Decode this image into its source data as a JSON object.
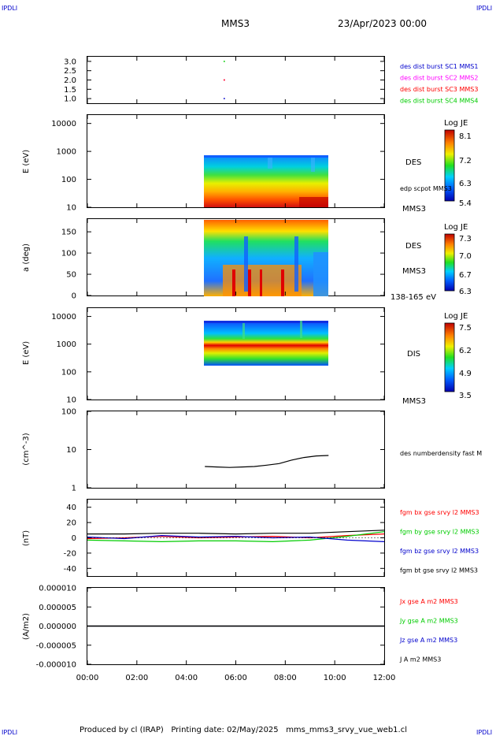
{
  "header": {
    "corner_tl": "IPDLI",
    "corner_tr": "IPDLI",
    "corner_bl": "IPDLI",
    "corner_br": "IPDLI",
    "spacecraft": "MMS3",
    "date": "23/Apr/2023 00:00"
  },
  "footer": {
    "text": "Produced by cl (IRAP)   Printing date: 02/May/2025   mms_mms3_srvy_vue_web1.cl"
  },
  "colors": {
    "blue": "#0000cc",
    "magenta": "#ff00ff",
    "red": "#ff0000",
    "green": "#00cc00",
    "black": "#000000"
  },
  "chart_data": [
    {
      "type": "scatter",
      "panel": "burst-indicator",
      "xlim": [
        "00:00",
        "12:00"
      ],
      "ylim": [
        0.75,
        3.25
      ],
      "yticks": [
        "1.0",
        "1.5",
        "2.0",
        "2.5",
        "3.0"
      ],
      "series": [
        {
          "name": "des dist burst SC1 MMS1",
          "color": "#0000cc",
          "x": [
            "05:32"
          ],
          "y": [
            1.0
          ]
        },
        {
          "name": "des dist burst SC2 MMS2",
          "color": "#ff00ff",
          "x": [
            "05:32"
          ],
          "y": [
            2.0
          ]
        },
        {
          "name": "des dist burst SC3 MMS3",
          "color": "#ff0000",
          "x": [
            "05:32"
          ],
          "y": [
            2.0
          ]
        },
        {
          "name": "des dist burst SC4 MMS4",
          "color": "#00cc00",
          "x": [
            "05:32"
          ],
          "y": [
            3.0
          ]
        }
      ]
    },
    {
      "type": "heatmap",
      "panel": "des-energy-spectrogram",
      "ylabel": "E (eV)",
      "yscale": "log",
      "ylim": [
        10,
        20000
      ],
      "yticks": [
        "10",
        "100",
        "1000",
        "10000"
      ],
      "time_range": [
        "04:45",
        "09:45"
      ],
      "energy_range_eV": [
        10,
        1000
      ],
      "label": "DES",
      "label2": "edp scpot MMS3",
      "label3": "MMS3",
      "colorbar": {
        "title": "Log JE",
        "ticks": [
          "8.1",
          "7.2",
          "6.3",
          "5.4"
        ],
        "min": 5.4,
        "max": 8.1
      }
    },
    {
      "type": "heatmap",
      "panel": "des-pitch-angle",
      "ylabel": "a (deg)",
      "ylim": [
        0,
        180
      ],
      "yticks": [
        "0",
        "50",
        "100",
        "150"
      ],
      "time_range": [
        "04:45",
        "09:45"
      ],
      "label": "DES",
      "label2": "MMS3",
      "label3": "138-165 eV",
      "colorbar": {
        "title": "Log JE",
        "ticks": [
          "7.3",
          "7.0",
          "6.7",
          "6.3"
        ],
        "min": 6.3,
        "max": 7.3
      }
    },
    {
      "type": "heatmap",
      "panel": "dis-energy-spectrogram",
      "ylabel": "E (eV)",
      "yscale": "log",
      "ylim": [
        10,
        20000
      ],
      "yticks": [
        "10",
        "100",
        "1000",
        "10000"
      ],
      "time_range": [
        "04:45",
        "09:45"
      ],
      "energy_range_eV": [
        200,
        10000
      ],
      "label": "DIS",
      "label2": "MMS3",
      "colorbar": {
        "title": "Log JE",
        "ticks": [
          "7.5",
          "6.2",
          "4.9",
          "3.5"
        ],
        "min": 3.5,
        "max": 7.5
      }
    },
    {
      "type": "line",
      "panel": "density",
      "ylabel": "(cm^-3)",
      "yscale": "log",
      "ylim": [
        1,
        100
      ],
      "yticks": [
        "1",
        "10",
        "100"
      ],
      "series": [
        {
          "name": "des numberdensity fast M",
          "color": "#000000",
          "x": [
            "04:45",
            "05:15",
            "05:45",
            "06:15",
            "06:45",
            "07:15",
            "07:45",
            "08:15",
            "08:45",
            "09:15",
            "09:45"
          ],
          "y": [
            3.6,
            3.5,
            3.4,
            3.5,
            3.6,
            3.9,
            4.3,
            5.3,
            6.2,
            6.8,
            7.0
          ]
        }
      ]
    },
    {
      "type": "line",
      "panel": "magnetic-field",
      "ylabel": "(nT)",
      "ylim": [
        -50,
        50
      ],
      "yticks": [
        "-40",
        "-20",
        "0",
        "20",
        "40"
      ],
      "series": [
        {
          "name": "fgm bx gse srvy l2 MMS3",
          "color": "#ff0000",
          "x": [
            "00:00",
            "01:30",
            "03:00",
            "04:30",
            "06:00",
            "07:30",
            "09:00",
            "10:30",
            "12:00"
          ],
          "y": [
            -1,
            0,
            2,
            0,
            1,
            2,
            0,
            3,
            5
          ]
        },
        {
          "name": "fgm by gse srvy l2 MMS3",
          "color": "#00cc00",
          "x": [
            "00:00",
            "01:30",
            "03:00",
            "04:30",
            "06:00",
            "07:30",
            "09:00",
            "10:30",
            "12:00"
          ],
          "y": [
            -3,
            -4,
            -5,
            -4,
            -4,
            -5,
            -3,
            2,
            8
          ]
        },
        {
          "name": "fgm bz gse srvy l2 MMS3",
          "color": "#0000cc",
          "x": [
            "00:00",
            "01:30",
            "03:00",
            "04:30",
            "06:00",
            "07:30",
            "09:00",
            "10:30",
            "12:00"
          ],
          "y": [
            1,
            -1,
            3,
            1,
            2,
            0,
            1,
            -3,
            -5
          ]
        },
        {
          "name": "fgm bt gse srvy l2 MMS3",
          "color": "#000000",
          "x": [
            "00:00",
            "01:30",
            "03:00",
            "04:30",
            "06:00",
            "07:30",
            "09:00",
            "10:30",
            "12:00"
          ],
          "y": [
            5,
            5,
            6,
            6,
            5,
            6,
            6,
            8,
            10
          ]
        }
      ]
    },
    {
      "type": "line",
      "panel": "current-density",
      "ylabel": "(A/m2)",
      "ylim": [
        -1e-05,
        1e-05
      ],
      "yticks": [
        "-0.000010",
        "-0.000005",
        "0.000000",
        "0.000005",
        "0.000010"
      ],
      "series": [
        {
          "name": "Jx gse A m2 MMS3",
          "color": "#ff0000",
          "x": [
            "00:00",
            "12:00"
          ],
          "y": [
            0,
            0
          ]
        },
        {
          "name": "Jy gse A m2 MMS3",
          "color": "#00cc00",
          "x": [
            "00:00",
            "12:00"
          ],
          "y": [
            0,
            0
          ]
        },
        {
          "name": "Jz gse A m2 MMS3",
          "color": "#0000cc",
          "x": [
            "00:00",
            "12:00"
          ],
          "y": [
            0,
            0
          ]
        },
        {
          "name": "J A m2 MMS3",
          "color": "#000000",
          "x": [
            "00:00",
            "12:00"
          ],
          "y": [
            0,
            0
          ]
        }
      ]
    }
  ],
  "x_axis": {
    "ticks": [
      "00:00",
      "02:00",
      "04:00",
      "06:00",
      "08:00",
      "10:00",
      "12:00"
    ]
  }
}
